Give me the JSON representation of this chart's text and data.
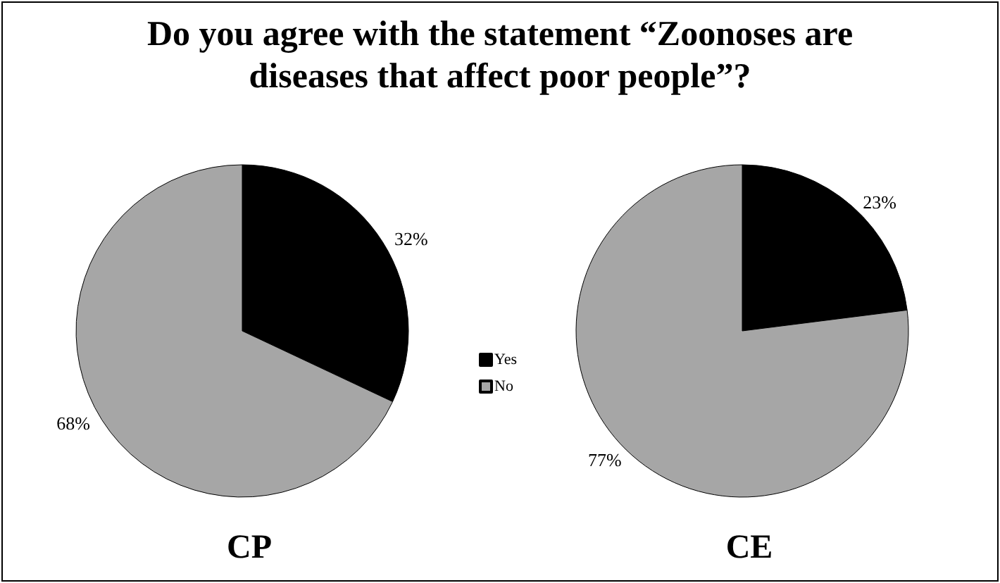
{
  "chart_data": {
    "type": "pie",
    "title": "Do you agree with the statement “Zoonoses are diseases that affect poor people”?",
    "categories": [
      "Yes",
      "No"
    ],
    "colors": [
      "#000000",
      "#a6a6a6"
    ],
    "legend": "center",
    "series": [
      {
        "name": "CP",
        "values": [
          32,
          68
        ],
        "value_labels": [
          "32%",
          "68%"
        ]
      },
      {
        "name": "CE",
        "values": [
          23,
          77
        ],
        "value_labels": [
          "23%",
          "77%"
        ]
      }
    ]
  }
}
